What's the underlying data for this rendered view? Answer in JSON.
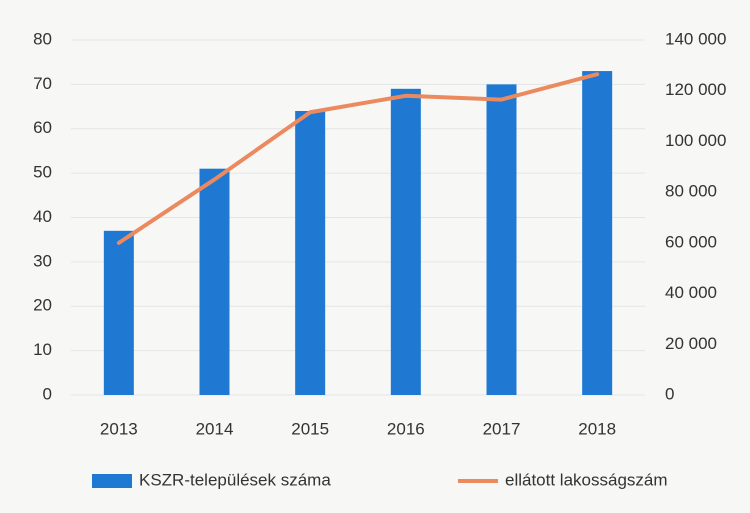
{
  "chart_data": {
    "type": "bar_line",
    "categories": [
      "2013",
      "2014",
      "2015",
      "2016",
      "2017",
      "2018"
    ],
    "series": [
      {
        "name": "KSZR-települések száma",
        "color": "#1f78d1",
        "type": "bar",
        "values": [
          37,
          51,
          64,
          69,
          70,
          73
        ]
      },
      {
        "name": "ellátott lakosságszám",
        "color": "#ec8a5f",
        "type": "line",
        "axis": "y2",
        "values": [
          60000,
          85000,
          111500,
          118000,
          116500,
          126500
        ]
      }
    ],
    "ylim": [
      0,
      80
    ],
    "yticks": [
      0,
      10,
      20,
      30,
      40,
      50,
      60,
      70,
      80
    ],
    "y2lim": [
      0,
      140000
    ],
    "y2ticks": [
      0,
      {
        "value": 20000,
        "label": "20 000"
      },
      {
        "value": 40000,
        "label": "40 000"
      },
      {
        "value": 60000,
        "label": "60 000"
      },
      {
        "value": 80000,
        "label": "80 000"
      },
      {
        "value": 100000,
        "label": "100 000"
      },
      {
        "value": 120000,
        "label": "120 000"
      },
      {
        "value": 140000,
        "label": "140 000"
      }
    ],
    "grid": true,
    "legend": "bottom"
  }
}
